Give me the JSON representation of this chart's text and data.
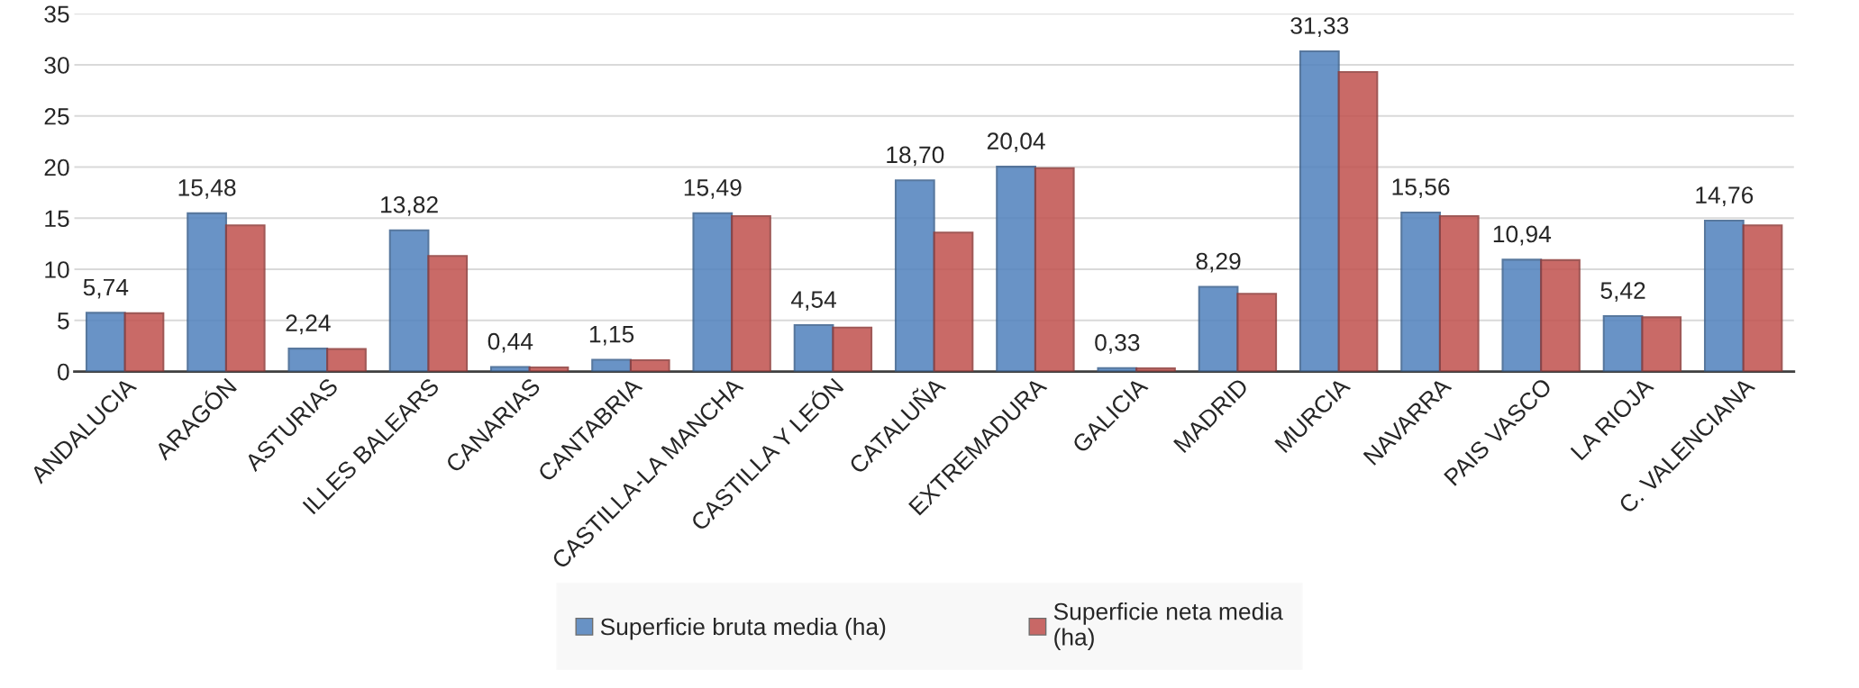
{
  "chart_data": {
    "type": "bar",
    "categories": [
      "ANDALUCIA",
      "ARAGÓN",
      "ASTURIAS",
      "ILLES BALEARS",
      "CANARIAS",
      "CANTABRIA",
      "CASTILLA-LA MANCHA",
      "CASTILLA Y LEÓN",
      "CATALUÑA",
      "EXTREMADURA",
      "GALICIA",
      "MADRID",
      "MURCIA",
      "NAVARRA",
      "PAIS VASCO",
      "LA RIOJA",
      "C. VALENCIANA"
    ],
    "series": [
      {
        "name": "Superficie bruta media (ha)",
        "color": "#4f81bd",
        "values": [
          5.74,
          15.48,
          2.24,
          13.82,
          0.44,
          1.15,
          15.49,
          4.54,
          18.7,
          20.04,
          0.33,
          8.29,
          31.33,
          15.56,
          10.94,
          5.42,
          14.76
        ],
        "value_labels": [
          "5,74",
          "15,48",
          "2,24",
          "13,82",
          "0,44",
          "1,15",
          "15,49",
          "4,54",
          "18,70",
          "20,04",
          "0,33",
          "8,29",
          "31,33",
          "15,56",
          "10,94",
          "5,42",
          "14,76"
        ]
      },
      {
        "name": "Superficie neta media\n(ha)",
        "color": "#c0504d",
        "values": [
          5.7,
          14.3,
          2.2,
          11.3,
          0.4,
          1.1,
          15.2,
          4.3,
          13.6,
          19.9,
          0.3,
          7.6,
          29.3,
          15.2,
          10.9,
          5.3,
          14.3
        ]
      }
    ],
    "ylim": [
      0,
      35
    ],
    "yticks": [
      0,
      5,
      10,
      15,
      20,
      25,
      30,
      35
    ],
    "grid": "y",
    "legend": "bottom"
  }
}
